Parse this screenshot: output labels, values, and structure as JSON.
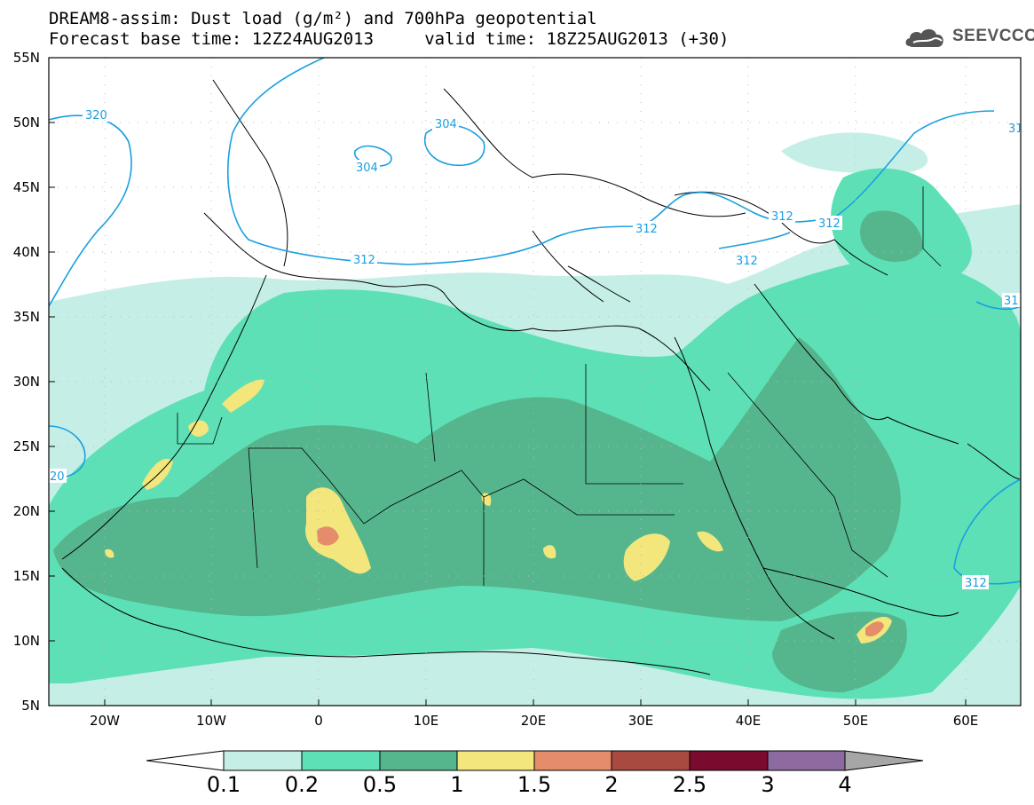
{
  "title_line1": "DREAM8-assim: Dust load (g/m²) and 700hPa geopotential",
  "title_line2": "Forecast base time: 12Z24AUG2013     valid time: 18Z25AUG2013 (+30)",
  "logo": {
    "text": "SEEVCCC",
    "icon": "cloud-icon",
    "color": "#555555"
  },
  "lat_labels": [
    "55N",
    "50N",
    "45N",
    "40N",
    "35N",
    "30N",
    "25N",
    "20N",
    "15N",
    "10N",
    "5N"
  ],
  "lon_labels": [
    "20W",
    "10W",
    "0",
    "10E",
    "20E",
    "30E",
    "40E",
    "50E",
    "60E"
  ],
  "contour_labels": [
    "320",
    "304",
    "304",
    "312",
    "312",
    "312",
    "312",
    "312",
    "31",
    "31",
    "20",
    "312"
  ],
  "colorbar": {
    "ticks": [
      "0.1",
      "0.2",
      "0.5",
      "1",
      "1.5",
      "2",
      "2.5",
      "3",
      "4"
    ],
    "colors": [
      "#ffffff",
      "#c5efe6",
      "#5ee0b6",
      "#55b68d",
      "#f2e67c",
      "#e58d6b",
      "#a94a40",
      "#7a0a2e",
      "#8d6a9f",
      "#a6a6a6"
    ]
  },
  "colors": {
    "contour_line": "#1a9fe0",
    "coastline": "#000000"
  }
}
